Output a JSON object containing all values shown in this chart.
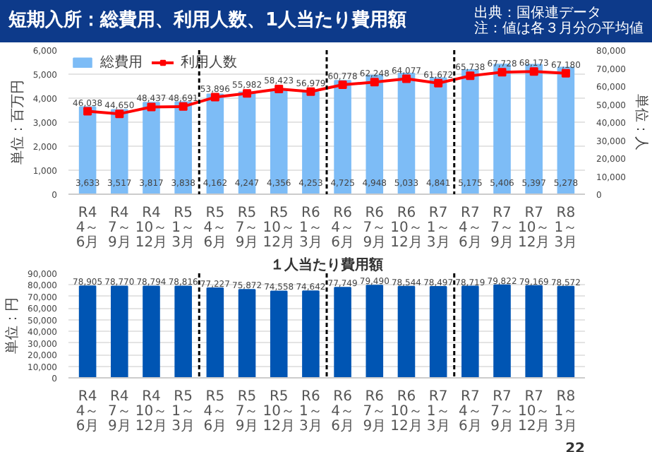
{
  "chart_data": [
    {
      "type": "bar",
      "title": "短期入所：総費用、利用人数、1人当たり費用額",
      "annotations": [
        "出典：国保連データ",
        "注：値は各３月分の平均値"
      ],
      "ylabel": "単位：百万円",
      "y2label": "単位：人",
      "categories": [
        "R4 4～6月",
        "R4 7～9月",
        "R4 10～12月",
        "R5 1～3月",
        "R5 4～6月",
        "R5 7～9月",
        "R5 10～12月",
        "R6 1～3月",
        "R6 4～6月",
        "R6 7～9月",
        "R6 10～12月",
        "R7 1～3月",
        "R7 4～6月",
        "R7 7～9月",
        "R7 10～12月",
        "R8 1～3月"
      ],
      "series": [
        {
          "name": "総費用",
          "type": "bar",
          "color": "#7dbcf6",
          "values": [
            3633,
            3517,
            3817,
            3838,
            4162,
            4247,
            4356,
            4253,
            4725,
            4948,
            5033,
            4841,
            5175,
            5406,
            5397,
            5278
          ],
          "value_labels": [
            "3,633",
            "3,517",
            "3,817",
            "3,838",
            "4,162",
            "4,247",
            "4,356",
            "4,253",
            "4,725",
            "4,948",
            "5,033",
            "4,841",
            "5,175",
            "5,406",
            "5,397",
            "5,278"
          ]
        },
        {
          "name": "利用人数",
          "type": "line",
          "axis": "y2",
          "color": "#ff0000",
          "marker": "square",
          "values": [
            46038,
            44650,
            48437,
            48691,
            53896,
            55982,
            58423,
            56979,
            60778,
            62248,
            64077,
            61672,
            65738,
            67728,
            68173,
            67180
          ],
          "value_labels": [
            "46,038",
            "44,650",
            "48,437",
            "48,691",
            "53,896",
            "55,982",
            "58,423",
            "56,979",
            "60,778",
            "62,248",
            "64,077",
            "61,672",
            "65,738",
            "67,728",
            "68,173",
            "67,180"
          ]
        }
      ],
      "ylim": [
        0,
        6000
      ],
      "yticks": [
        0,
        {
          "value": 1000,
          "label": "1,000"
        },
        {
          "value": 2000,
          "label": "2,000"
        },
        {
          "value": 3000,
          "label": "3,000"
        },
        {
          "value": 4000,
          "label": "4,000"
        },
        {
          "value": 5000,
          "label": "5,000"
        },
        {
          "value": 6000,
          "label": "6,000"
        }
      ],
      "y2lim": [
        0,
        80000
      ],
      "y2ticks": [
        0,
        {
          "value": 10000,
          "label": "10,000"
        },
        {
          "value": 20000,
          "label": "20,000"
        },
        {
          "value": 30000,
          "label": "30,000"
        },
        {
          "value": 40000,
          "label": "40,000"
        },
        {
          "value": 50000,
          "label": "50,000"
        },
        {
          "value": 60000,
          "label": "60,000"
        },
        {
          "value": 70000,
          "label": "70,000"
        },
        {
          "value": 80000,
          "label": "80,000"
        }
      ],
      "grid": "y",
      "legend": "top left"
    },
    {
      "type": "bar",
      "title": "１人当たり費用額",
      "annotations": [
        "22"
      ],
      "ylabel": "単位：円",
      "categories": [
        "R4 4～6月",
        "R4 7～9月",
        "R4 10～12月",
        "R5 1～3月",
        "R5 4～6月",
        "R5 7～9月",
        "R5 10～12月",
        "R6 1～3月",
        "R6 4～6月",
        "R6 7～9月",
        "R6 10～12月",
        "R7 1～3月",
        "R7 4～6月",
        "R7 7～9月",
        "R7 10～12月",
        "R8 1～3月"
      ],
      "color": "#0055b3",
      "values": [
        78905,
        78770,
        78794,
        78816,
        77227,
        75872,
        74558,
        74642,
        77749,
        79490,
        78544,
        78497,
        78719,
        79822,
        79169,
        78572
      ],
      "value_labels": [
        "78,905",
        "78,770",
        "78,794",
        "78,816",
        "77,227",
        "75,872",
        "74,558",
        "74,642",
        "77,749",
        "79,490",
        "78,544",
        "78,497",
        "78,719",
        "79,822",
        "79,169",
        "78,572"
      ],
      "ylim": [
        0,
        90000
      ],
      "yticks": [
        0,
        {
          "value": 10000,
          "label": "10,000"
        },
        {
          "value": 20000,
          "label": "20,000"
        },
        {
          "value": 30000,
          "label": "30,000"
        },
        {
          "value": 40000,
          "label": "40,000"
        },
        {
          "value": 50000,
          "label": "50,000"
        },
        {
          "value": 60000,
          "label": "60,000"
        },
        {
          "value": 70000,
          "label": "70,000"
        },
        {
          "value": 80000,
          "label": "80,000"
        },
        {
          "value": 90000,
          "label": "90,000"
        }
      ],
      "grid": "y"
    }
  ]
}
